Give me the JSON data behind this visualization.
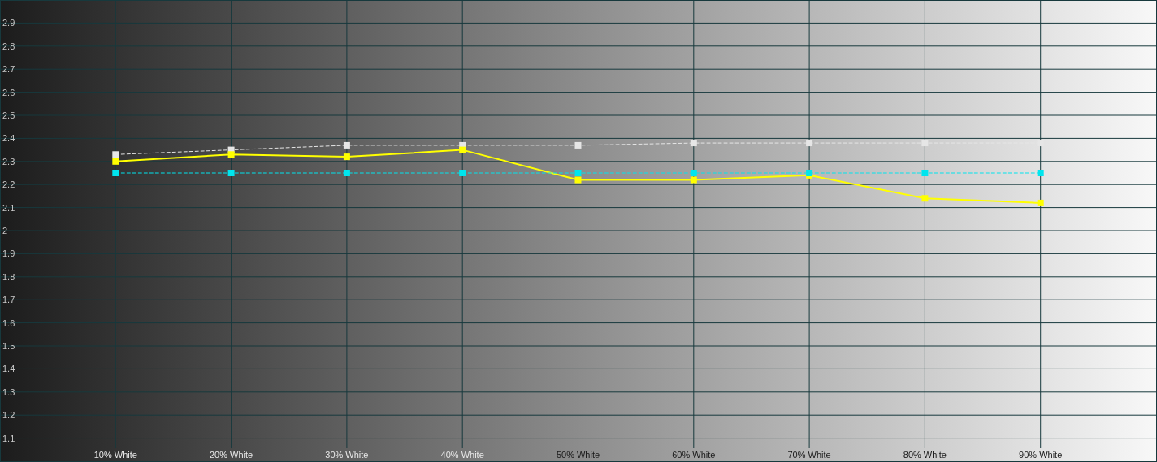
{
  "chart_data": {
    "type": "line",
    "xlim": [
      0,
      100
    ],
    "xticks": [
      {
        "value": 10,
        "label": "10% White"
      },
      {
        "value": 20,
        "label": "20% White"
      },
      {
        "value": 30,
        "label": "30% White"
      },
      {
        "value": 40,
        "label": "40% White"
      },
      {
        "value": 50,
        "label": "50% White"
      },
      {
        "value": 60,
        "label": "60% White"
      },
      {
        "value": 70,
        "label": "70% White"
      },
      {
        "value": 80,
        "label": "80% White"
      },
      {
        "value": 90,
        "label": "90% White"
      }
    ],
    "ylim": [
      1,
      3
    ],
    "yticks": [
      1.1,
      1.2,
      1.3,
      1.4,
      1.5,
      1.6,
      1.7,
      1.8,
      1.9,
      2,
      2.1,
      2.2,
      2.3,
      2.4,
      2.5,
      2.6,
      2.7,
      2.8,
      2.9
    ],
    "x": [
      10,
      20,
      30,
      40,
      50,
      60,
      70,
      80,
      90
    ],
    "series": [
      {
        "color": "#e6e6e6",
        "line_style": "dashed",
        "values": [
          2.33,
          2.35,
          2.37,
          2.37,
          2.37,
          2.38,
          2.38,
          2.38,
          2.38
        ]
      },
      {
        "color": "#ffff00",
        "line_style": "solid",
        "values": [
          2.3,
          2.33,
          2.32,
          2.35,
          2.22,
          2.22,
          2.24,
          2.14,
          2.12
        ]
      },
      {
        "color": "#00e5ee",
        "line_style": "dashed",
        "values": [
          2.25,
          2.25,
          2.25,
          2.25,
          2.25,
          2.25,
          2.25,
          2.25,
          2.25
        ]
      }
    ],
    "marker": "square",
    "grid": true
  }
}
